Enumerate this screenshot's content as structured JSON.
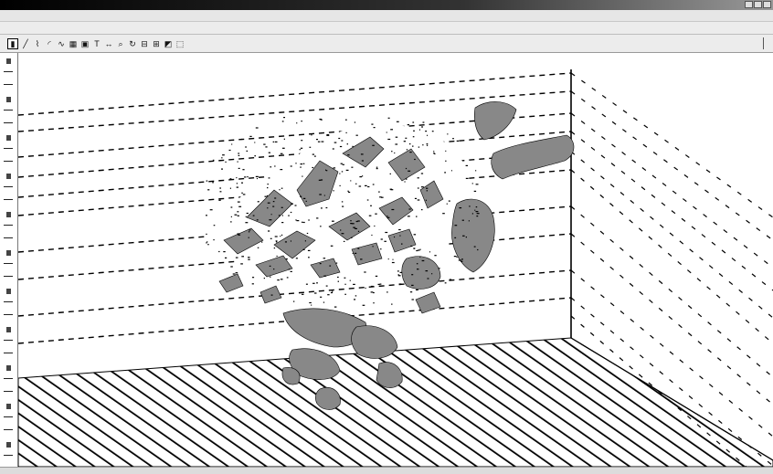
{
  "app": {
    "title": ""
  },
  "menu": {
    "items": []
  },
  "options": {
    "items": []
  },
  "toolbar": {
    "tools": [
      "select-tool",
      "line-tool",
      "polyline-tool",
      "arc-tool",
      "curve-tool",
      "grid-tool",
      "block-tool",
      "text-tool",
      "dimension-tool",
      "zoom-tool",
      "rotate-tool",
      "slice-tool",
      "mesh-tool",
      "surface-tool",
      "view-tool"
    ]
  },
  "statusbar": {
    "cells": []
  },
  "colors": {
    "surface": "#888888",
    "lines": "#000000",
    "background": "#ffffff",
    "chrome": "#ececec"
  }
}
